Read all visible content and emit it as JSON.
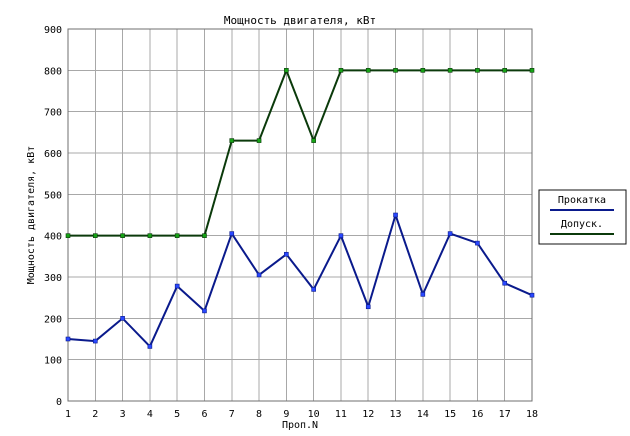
{
  "chart_data": {
    "type": "line",
    "title": "Мощность двигателя, кВт",
    "xlabel": "Проп.N",
    "ylabel": "Мощность двигателя, кВт",
    "categories": [
      "1",
      "2",
      "3",
      "4",
      "5",
      "6",
      "7",
      "8",
      "9",
      "10",
      "11",
      "12",
      "13",
      "14",
      "15",
      "16",
      "17",
      "18"
    ],
    "ylim": [
      0,
      900
    ],
    "yticks": [
      "0",
      "100",
      "200",
      "300",
      "400",
      "500",
      "600",
      "700",
      "800",
      "900"
    ],
    "grid": true,
    "legend_position": "right",
    "series": [
      {
        "name": "Прокатка",
        "color": "#0a1a8c",
        "marker": "#2a48ff",
        "values": [
          150,
          145,
          200,
          132,
          278,
          218,
          405,
          305,
          355,
          270,
          400,
          228,
          450,
          258,
          405,
          382,
          285,
          256
        ]
      },
      {
        "name": "Допуск.",
        "color": "#0b3a0b",
        "marker": "#16a316",
        "values": [
          400,
          400,
          400,
          400,
          400,
          400,
          630,
          630,
          800,
          630,
          800,
          800,
          800,
          800,
          800,
          800,
          800,
          800
        ]
      }
    ]
  }
}
